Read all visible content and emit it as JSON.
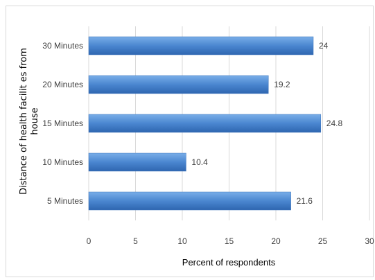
{
  "chart_data": {
    "type": "bar",
    "orientation": "horizontal",
    "categories": [
      "30 Minutes",
      "20 Minutes",
      "15 Minutes",
      "10 Minutes",
      "5 Minutes"
    ],
    "values": [
      24,
      19.2,
      24.8,
      10.4,
      21.6
    ],
    "data_labels": [
      "24",
      "19.2",
      "24.8",
      "10.4",
      "21.6"
    ],
    "xlabel": "Percent of respondents",
    "ylabel_lines": [
      "Distance of health facilit es from",
      "house"
    ],
    "xlim": [
      0,
      30
    ],
    "xticks": [
      "0",
      "5",
      "10",
      "15",
      "20",
      "25",
      "30"
    ],
    "grid": "vertical",
    "legend": "none",
    "bar_color": "#4a86d0",
    "gridline_color": "#d9d9d9"
  }
}
